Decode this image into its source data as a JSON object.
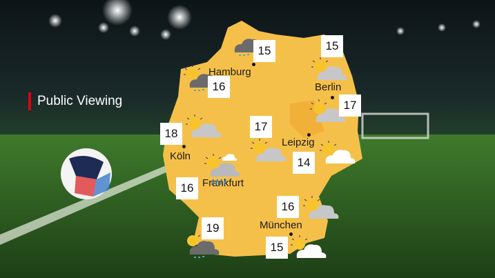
{
  "title": "Public Viewing",
  "colors": {
    "accent": "#e3000f",
    "map": "#f5c04a",
    "box": "#ffffff"
  },
  "cities": [
    {
      "name": "Hamburg"
    },
    {
      "name": "Berlin"
    },
    {
      "name": "Leipzig"
    },
    {
      "name": "Köln"
    },
    {
      "name": "Frankfurt"
    },
    {
      "name": "München"
    }
  ],
  "temperatures": [
    {
      "value": "15",
      "icon": "cloud-rain-icon"
    },
    {
      "value": "15",
      "icon": "partly-cloudy-icon"
    },
    {
      "value": "16",
      "icon": "sun-cloud-rain-icon"
    },
    {
      "value": "17",
      "icon": "partly-cloudy-icon"
    },
    {
      "value": "18",
      "icon": "partly-cloudy-icon"
    },
    {
      "value": "17",
      "icon": "partly-cloudy-icon"
    },
    {
      "value": "14",
      "icon": "sun-white-cloud-icon"
    },
    {
      "value": "16",
      "icon": "thunderstorm-icon"
    },
    {
      "value": "16",
      "icon": "partly-cloudy-icon"
    },
    {
      "value": "19",
      "icon": "sun-cloud-rain-icon"
    },
    {
      "value": "15",
      "icon": "sun-white-cloud-icon"
    }
  ]
}
